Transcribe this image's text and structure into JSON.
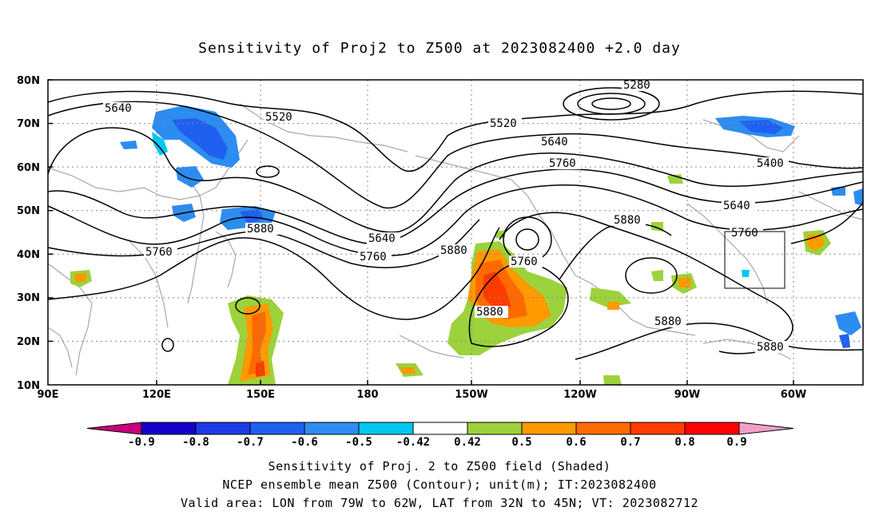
{
  "title": "Sensitivity of Proj2 to Z500 at 2023082400 +2.0 day",
  "lat_labels": [
    "80N",
    "70N",
    "60N",
    "50N",
    "40N",
    "30N",
    "20N",
    "10N"
  ],
  "lon_labels": [
    "90E",
    "120E",
    "150E",
    "180",
    "150W",
    "120W",
    "90W",
    "60W"
  ],
  "contour_labels": [
    "5280",
    "5520",
    "5520",
    "5640",
    "5640",
    "5640",
    "5640",
    "5760",
    "5760",
    "5760",
    "5760",
    "5760",
    "5880",
    "5880",
    "5880",
    "5880",
    "5880",
    "5880",
    "5400"
  ],
  "colorbar": {
    "labels": [
      "-0.9",
      "-0.8",
      "-0.7",
      "-0.6",
      "-0.5",
      "-0.42",
      "0.42",
      "0.5",
      "0.6",
      "0.7",
      "0.8",
      "0.9"
    ],
    "colors": [
      "#c8007c",
      "#1400c8",
      "#1e3ce6",
      "#2060f0",
      "#2c8cf0",
      "#00c8f0",
      "#ffffff",
      "#9cd23c",
      "#ff9a00",
      "#ff6a00",
      "#ff3c00",
      "#ff0000",
      "#f0a0c8"
    ]
  },
  "captions": {
    "line1": "Sensitivity of Proj. 2 to Z500 field (Shaded)",
    "line2": "NCEP ensemble mean Z500 (Contour); unit(m); IT:2023082400",
    "line3": "Valid area: LON from 79W to 62W, LAT from 32N to 45N; VT: 2023082712"
  }
}
